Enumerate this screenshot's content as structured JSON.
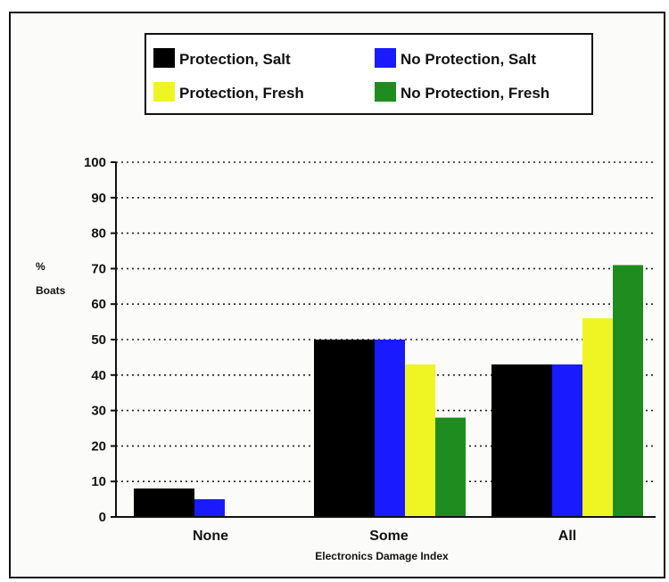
{
  "chart_data": {
    "type": "bar",
    "title": "",
    "xlabel": "Electronics  Damage Index",
    "ylabel_lines": [
      "%",
      "Boats"
    ],
    "categories": [
      "None",
      "Some",
      "All"
    ],
    "ylim": [
      0,
      100
    ],
    "yticks": [
      0,
      10,
      20,
      30,
      40,
      50,
      60,
      70,
      80,
      90,
      100
    ],
    "grid": "dotted horizontal",
    "legend_position": "top-center",
    "series": [
      {
        "name": "Protection, Salt",
        "color": "#000000",
        "values": [
          8,
          50,
          43
        ]
      },
      {
        "name": "No Protection, Salt",
        "color": "#1a1aff",
        "values": [
          5,
          50,
          43
        ]
      },
      {
        "name": "Protection, Fresh",
        "color": "#eef523",
        "values": [
          0,
          43,
          56
        ]
      },
      {
        "name": "No Protection, Fresh",
        "color": "#1f8c1f",
        "values": [
          0,
          28,
          71
        ]
      }
    ]
  }
}
